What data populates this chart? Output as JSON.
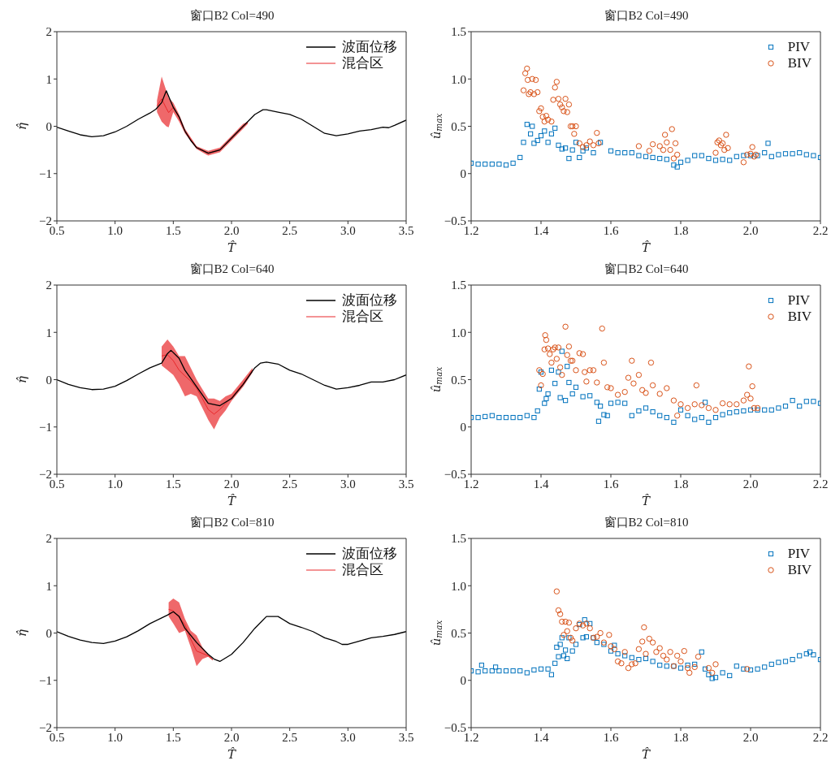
{
  "chart_data": [
    {
      "type": "line",
      "title": "窗口B2 Col=490",
      "xlabel": "T̂",
      "ylabel": "η̂",
      "xlim": [
        0.5,
        3.5
      ],
      "xticks": [
        0.5,
        {
          "value": 1,
          "label": "1.0"
        },
        1.5,
        {
          "value": 2,
          "label": "2.0"
        },
        2.5,
        {
          "value": 3,
          "label": "3.0"
        },
        3.5
      ],
      "ylim": [
        -2,
        2
      ],
      "yticks": [
        {
          "value": -2,
          "label": "−2"
        },
        {
          "value": -1,
          "label": "−1"
        },
        0,
        1,
        2
      ],
      "legend": "top right",
      "series": [
        {
          "name": "波面位移",
          "color": "#000000",
          "x": [
            0.5,
            0.6,
            0.7,
            0.8,
            0.9,
            1.0,
            1.1,
            1.2,
            1.3,
            1.35,
            1.4,
            1.44,
            1.5,
            1.55,
            1.6,
            1.65,
            1.7,
            1.8,
            1.9,
            2.0,
            2.1,
            2.2,
            2.27,
            2.3,
            2.4,
            2.5,
            2.6,
            2.7,
            2.8,
            2.9,
            3.0,
            3.1,
            3.2,
            3.3,
            3.35,
            3.4,
            3.5
          ],
          "values": [
            -0.02,
            -0.1,
            -0.18,
            -0.22,
            -0.2,
            -0.12,
            0.0,
            0.15,
            0.28,
            0.36,
            0.5,
            0.75,
            0.4,
            0.2,
            -0.1,
            -0.3,
            -0.45,
            -0.57,
            -0.5,
            -0.25,
            0.0,
            0.25,
            0.35,
            0.35,
            0.3,
            0.25,
            0.15,
            0.0,
            -0.15,
            -0.2,
            -0.16,
            -0.1,
            -0.07,
            -0.02,
            -0.03,
            0.02,
            0.13
          ]
        },
        {
          "name": "混合区",
          "color": "#e8282b",
          "x": [
            1.36,
            1.4,
            1.44,
            1.46,
            1.5,
            1.55,
            1.6,
            1.7,
            1.8,
            1.9,
            2.0,
            2.1,
            2.14
          ],
          "values": [
            0.43,
            0.58,
            0.38,
            0.29,
            0.4,
            0.18,
            -0.1,
            -0.45,
            -0.57,
            -0.5,
            -0.25,
            0,
            0.08
          ],
          "lower": [
            0.3,
            0.1,
            0.0,
            -0.02,
            0.3,
            0.1,
            -0.15,
            -0.48,
            -0.62,
            -0.55,
            -0.3,
            -0.05,
            0.05
          ],
          "upper": [
            0.55,
            1.05,
            0.75,
            0.6,
            0.5,
            0.25,
            -0.05,
            -0.42,
            -0.52,
            -0.45,
            -0.2,
            0.05,
            0.1
          ]
        }
      ]
    },
    {
      "type": "scatter",
      "title": "窗口B2 Col=490",
      "xlabel": "T̂",
      "ylabel": "û$_{max}$",
      "xlim": [
        1.2,
        2.2
      ],
      "xticks": [
        1.2,
        1.4,
        1.6,
        1.8,
        {
          "value": 2,
          "label": "2.0"
        },
        2.2
      ],
      "ylim": [
        -0.5,
        1.5
      ],
      "yticks": [
        {
          "value": -0.5,
          "label": "−0.5"
        },
        0,
        0.5,
        {
          "value": 1,
          "label": "1.0"
        },
        1.5
      ],
      "legend": "top right",
      "series": [
        {
          "name": "PIV",
          "color": "#0072bd",
          "marker": "square",
          "x": [
            1.2,
            1.22,
            1.24,
            1.26,
            1.28,
            1.3,
            1.32,
            1.34,
            1.35,
            1.36,
            1.37,
            1.375,
            1.38,
            1.39,
            1.4,
            1.41,
            1.42,
            1.43,
            1.44,
            1.45,
            1.46,
            1.47,
            1.48,
            1.49,
            1.5,
            1.51,
            1.52,
            1.53,
            1.55,
            1.57,
            1.6,
            1.62,
            1.64,
            1.66,
            1.68,
            1.7,
            1.72,
            1.74,
            1.76,
            1.78,
            1.79,
            1.8,
            1.82,
            1.84,
            1.86,
            1.88,
            1.9,
            1.92,
            1.94,
            1.96,
            1.98,
            2.0,
            2.02,
            2.04,
            2.05,
            2.06,
            2.08,
            2.1,
            2.12,
            2.14,
            2.16,
            2.18,
            2.2
          ],
          "values": [
            0.11,
            0.1,
            0.1,
            0.1,
            0.1,
            0.09,
            0.11,
            0.17,
            0.33,
            0.52,
            0.42,
            0.5,
            0.32,
            0.35,
            0.4,
            0.45,
            0.33,
            0.42,
            0.48,
            0.3,
            0.26,
            0.27,
            0.16,
            0.25,
            0.33,
            0.17,
            0.24,
            0.27,
            0.22,
            0.33,
            0.24,
            0.22,
            0.22,
            0.22,
            0.19,
            0.18,
            0.17,
            0.16,
            0.15,
            0.09,
            0.07,
            0.12,
            0.14,
            0.19,
            0.19,
            0.16,
            0.14,
            0.15,
            0.14,
            0.18,
            0.19,
            0.19,
            0.19,
            0.22,
            0.32,
            0.18,
            0.2,
            0.21,
            0.21,
            0.22,
            0.2,
            0.19,
            0.17
          ]
        },
        {
          "name": "BIV",
          "color": "#d95319",
          "marker": "circle",
          "x": [
            1.35,
            1.355,
            1.36,
            1.362,
            1.365,
            1.37,
            1.375,
            1.38,
            1.385,
            1.39,
            1.395,
            1.4,
            1.405,
            1.41,
            1.415,
            1.42,
            1.43,
            1.435,
            1.44,
            1.445,
            1.45,
            1.455,
            1.46,
            1.465,
            1.47,
            1.475,
            1.48,
            1.485,
            1.49,
            1.495,
            1.5,
            1.51,
            1.52,
            1.53,
            1.54,
            1.55,
            1.56,
            1.565,
            1.68,
            1.71,
            1.72,
            1.74,
            1.75,
            1.755,
            1.76,
            1.77,
            1.775,
            1.78,
            1.785,
            1.79,
            1.9,
            1.905,
            1.91,
            1.915,
            1.92,
            1.925,
            1.93,
            1.935,
            1.98,
            1.99,
            2.0,
            2.005,
            2.01,
            2.015
          ],
          "values": [
            0.88,
            1.06,
            1.11,
            0.99,
            0.84,
            0.86,
            1.0,
            0.84,
            0.99,
            0.86,
            0.66,
            0.69,
            0.6,
            0.55,
            0.61,
            0.57,
            0.55,
            0.78,
            0.91,
            0.97,
            0.79,
            0.73,
            0.7,
            0.66,
            0.79,
            0.65,
            0.73,
            0.5,
            0.5,
            0.42,
            0.5,
            0.32,
            0.28,
            0.3,
            0.34,
            0.3,
            0.43,
            0.32,
            0.29,
            0.24,
            0.31,
            0.29,
            0.25,
            0.41,
            0.33,
            0.25,
            0.47,
            0.16,
            0.32,
            0.2,
            0.22,
            0.33,
            0.35,
            0.3,
            0.32,
            0.25,
            0.41,
            0.27,
            0.12,
            0.2,
            0.21,
            0.28,
            0.18,
            0.2
          ]
        }
      ]
    },
    {
      "type": "line",
      "title": "窗口B2 Col=640",
      "xlabel": "T̂",
      "ylabel": "η̂",
      "xlim": [
        0.5,
        3.5
      ],
      "xticks": [
        0.5,
        {
          "value": 1,
          "label": "1.0"
        },
        1.5,
        {
          "value": 2,
          "label": "2.0"
        },
        2.5,
        {
          "value": 3,
          "label": "3.0"
        },
        3.5
      ],
      "ylim": [
        -2,
        2
      ],
      "yticks": [
        {
          "value": -2,
          "label": "−2"
        },
        {
          "value": -1,
          "label": "−1"
        },
        0,
        1,
        2
      ],
      "legend": "top right",
      "series": [
        {
          "name": "波面位移",
          "color": "#000000",
          "x": [
            0.5,
            0.6,
            0.7,
            0.8,
            0.9,
            1.0,
            1.1,
            1.2,
            1.3,
            1.4,
            1.45,
            1.48,
            1.55,
            1.6,
            1.7,
            1.8,
            1.9,
            2.0,
            2.1,
            2.2,
            2.25,
            2.3,
            2.4,
            2.5,
            2.6,
            2.7,
            2.8,
            2.9,
            3.0,
            3.1,
            3.2,
            3.3,
            3.4,
            3.5
          ],
          "values": [
            0.0,
            -0.1,
            -0.17,
            -0.21,
            -0.2,
            -0.14,
            -0.02,
            0.12,
            0.25,
            0.35,
            0.55,
            0.62,
            0.45,
            0.2,
            -0.15,
            -0.5,
            -0.55,
            -0.4,
            -0.1,
            0.25,
            0.35,
            0.37,
            0.33,
            0.2,
            0.12,
            0.0,
            -0.12,
            -0.2,
            -0.17,
            -0.12,
            -0.05,
            -0.05,
            0.0,
            0.1
          ]
        },
        {
          "name": "混合区",
          "color": "#e8282b",
          "x": [
            1.4,
            1.45,
            1.5,
            1.55,
            1.6,
            1.65,
            1.7,
            1.75,
            1.8,
            1.85,
            1.9,
            1.95,
            2.0,
            2.1,
            2.18
          ],
          "values": [
            0.5,
            0.53,
            0.4,
            0.2,
            0.08,
            -0.03,
            -0.18,
            -0.4,
            -0.63,
            -0.73,
            -0.63,
            -0.5,
            -0.38,
            -0.08,
            0.2
          ],
          "lower": [
            0.3,
            0.2,
            0.1,
            -0.1,
            -0.35,
            -0.3,
            -0.35,
            -0.6,
            -0.85,
            -1.05,
            -0.8,
            -0.65,
            -0.45,
            -0.15,
            0.15
          ],
          "upper": [
            0.7,
            0.85,
            0.7,
            0.5,
            0.5,
            0.25,
            0.0,
            -0.2,
            -0.4,
            -0.4,
            -0.45,
            -0.35,
            -0.3,
            0.0,
            0.25
          ]
        }
      ]
    },
    {
      "type": "scatter",
      "title": "窗口B2 Col=640",
      "xlabel": "T̂",
      "ylabel": "û$_{max}$",
      "xlim": [
        1.2,
        2.2
      ],
      "xticks": [
        1.2,
        1.4,
        1.6,
        1.8,
        {
          "value": 2,
          "label": "2.0"
        },
        2.2
      ],
      "ylim": [
        -0.5,
        1.5
      ],
      "yticks": [
        {
          "value": -0.5,
          "label": "−0.5"
        },
        0,
        0.5,
        {
          "value": 1,
          "label": "1.0"
        },
        1.5
      ],
      "legend": "top right",
      "series": [
        {
          "name": "PIV",
          "color": "#0072bd",
          "marker": "square",
          "x": [
            1.2,
            1.22,
            1.24,
            1.26,
            1.28,
            1.3,
            1.32,
            1.34,
            1.36,
            1.38,
            1.39,
            1.395,
            1.4,
            1.41,
            1.415,
            1.42,
            1.43,
            1.44,
            1.45,
            1.455,
            1.46,
            1.47,
            1.475,
            1.48,
            1.49,
            1.5,
            1.52,
            1.54,
            1.56,
            1.565,
            1.57,
            1.58,
            1.59,
            1.6,
            1.62,
            1.64,
            1.66,
            1.68,
            1.7,
            1.72,
            1.74,
            1.76,
            1.78,
            1.8,
            1.82,
            1.84,
            1.86,
            1.87,
            1.88,
            1.9,
            1.92,
            1.94,
            1.96,
            1.98,
            2.0,
            2.02,
            2.04,
            2.06,
            2.08,
            2.1,
            2.12,
            2.14,
            2.16,
            2.18,
            2.2
          ],
          "values": [
            0.1,
            0.1,
            0.11,
            0.12,
            0.1,
            0.1,
            0.1,
            0.1,
            0.12,
            0.1,
            0.17,
            0.4,
            0.58,
            0.25,
            0.3,
            0.35,
            0.6,
            0.46,
            0.58,
            0.31,
            0.8,
            0.28,
            0.64,
            0.47,
            0.35,
            0.42,
            0.32,
            0.33,
            0.26,
            0.06,
            0.22,
            0.13,
            0.12,
            0.25,
            0.26,
            0.25,
            0.12,
            0.17,
            0.2,
            0.16,
            0.12,
            0.1,
            0.05,
            0.18,
            0.12,
            0.08,
            0.1,
            0.26,
            0.05,
            0.1,
            0.13,
            0.15,
            0.16,
            0.17,
            0.18,
            0.18,
            0.18,
            0.18,
            0.2,
            0.22,
            0.28,
            0.22,
            0.27,
            0.27,
            0.25
          ]
        },
        {
          "name": "BIV",
          "color": "#d95319",
          "marker": "circle",
          "x": [
            1.395,
            1.4,
            1.405,
            1.41,
            1.412,
            1.415,
            1.42,
            1.425,
            1.43,
            1.435,
            1.44,
            1.445,
            1.45,
            1.455,
            1.46,
            1.47,
            1.475,
            1.48,
            1.485,
            1.49,
            1.5,
            1.51,
            1.52,
            1.525,
            1.53,
            1.54,
            1.55,
            1.56,
            1.575,
            1.58,
            1.59,
            1.6,
            1.62,
            1.64,
            1.65,
            1.66,
            1.665,
            1.68,
            1.69,
            1.7,
            1.715,
            1.72,
            1.74,
            1.76,
            1.78,
            1.79,
            1.8,
            1.82,
            1.84,
            1.845,
            1.86,
            1.88,
            1.9,
            1.92,
            1.94,
            1.96,
            1.98,
            1.99,
            1.995,
            2.0,
            2.005,
            2.01,
            2.02
          ],
          "values": [
            0.6,
            0.44,
            0.56,
            0.82,
            0.97,
            0.92,
            0.83,
            0.77,
            0.68,
            0.82,
            0.84,
            0.72,
            0.84,
            0.63,
            0.55,
            1.06,
            0.76,
            0.85,
            0.7,
            0.7,
            0.6,
            0.78,
            0.77,
            0.58,
            0.48,
            0.6,
            0.6,
            0.47,
            1.04,
            0.68,
            0.42,
            0.41,
            0.34,
            0.37,
            0.52,
            0.7,
            0.46,
            0.55,
            0.39,
            0.36,
            0.68,
            0.44,
            0.35,
            0.41,
            0.28,
            0.12,
            0.24,
            0.2,
            0.24,
            0.44,
            0.23,
            0.2,
            0.18,
            0.25,
            0.24,
            0.24,
            0.28,
            0.34,
            0.64,
            0.3,
            0.43,
            0.2,
            0.2
          ]
        }
      ]
    },
    {
      "type": "line",
      "title": "窗口B2 Col=810",
      "xlabel": "T̂",
      "ylabel": "η̂",
      "xlim": [
        0.5,
        3.5
      ],
      "xticks": [
        0.5,
        {
          "value": 1,
          "label": "1.0"
        },
        1.5,
        {
          "value": 2,
          "label": "2.0"
        },
        2.5,
        {
          "value": 3,
          "label": "3.0"
        },
        3.5
      ],
      "ylim": [
        -2,
        2
      ],
      "yticks": [
        {
          "value": -2,
          "label": "−2"
        },
        {
          "value": -1,
          "label": "−1"
        },
        0,
        1,
        2
      ],
      "legend": "top right",
      "series": [
        {
          "name": "波面位移",
          "color": "#000000",
          "x": [
            0.5,
            0.6,
            0.7,
            0.8,
            0.9,
            1.0,
            1.1,
            1.2,
            1.3,
            1.4,
            1.45,
            1.5,
            1.55,
            1.6,
            1.7,
            1.8,
            1.85,
            1.9,
            2.0,
            2.1,
            2.2,
            2.3,
            2.4,
            2.5,
            2.6,
            2.7,
            2.8,
            2.9,
            2.95,
            3.0,
            3.1,
            3.2,
            3.3,
            3.4,
            3.5
          ],
          "values": [
            0.03,
            -0.07,
            -0.15,
            -0.2,
            -0.22,
            -0.17,
            -0.08,
            0.05,
            0.2,
            0.32,
            0.38,
            0.45,
            0.35,
            0.1,
            -0.2,
            -0.45,
            -0.55,
            -0.6,
            -0.45,
            -0.2,
            0.1,
            0.35,
            0.35,
            0.2,
            0.12,
            0.03,
            -0.1,
            -0.18,
            -0.24,
            -0.24,
            -0.17,
            -0.1,
            -0.07,
            -0.03,
            0.03
          ]
        },
        {
          "name": "混合区",
          "color": "#e8282b",
          "x": [
            1.46,
            1.5,
            1.55,
            1.6,
            1.65,
            1.7,
            1.75,
            1.8,
            1.84
          ],
          "values": [
            0.5,
            0.47,
            0.33,
            0.18,
            -0.13,
            -0.38,
            -0.43,
            -0.48,
            -0.57
          ],
          "lower": [
            0.35,
            0.2,
            0.0,
            0.05,
            -0.3,
            -0.7,
            -0.55,
            -0.5,
            -0.58
          ],
          "upper": [
            0.65,
            0.73,
            0.65,
            0.3,
            0.05,
            -0.05,
            -0.3,
            -0.45,
            -0.55
          ]
        }
      ]
    },
    {
      "type": "scatter",
      "title": "窗口B2 Col=810",
      "xlabel": "T̂",
      "ylabel": "û$_{max}$",
      "xlim": [
        1.2,
        2.2
      ],
      "xticks": [
        1.2,
        1.4,
        1.6,
        1.8,
        {
          "value": 2,
          "label": "2.0"
        },
        2.2
      ],
      "ylim": [
        -0.5,
        1.5
      ],
      "yticks": [
        {
          "value": -0.5,
          "label": "−0.5"
        },
        0,
        0.5,
        {
          "value": 1,
          "label": "1.0"
        },
        1.5
      ],
      "legend": "top right",
      "series": [
        {
          "name": "PIV",
          "color": "#0072bd",
          "marker": "square",
          "x": [
            1.2,
            1.22,
            1.23,
            1.24,
            1.26,
            1.27,
            1.28,
            1.3,
            1.32,
            1.34,
            1.36,
            1.38,
            1.4,
            1.42,
            1.43,
            1.44,
            1.445,
            1.45,
            1.455,
            1.46,
            1.465,
            1.47,
            1.475,
            1.48,
            1.49,
            1.5,
            1.51,
            1.52,
            1.525,
            1.53,
            1.54,
            1.55,
            1.56,
            1.58,
            1.6,
            1.61,
            1.62,
            1.64,
            1.66,
            1.68,
            1.7,
            1.72,
            1.74,
            1.76,
            1.78,
            1.8,
            1.82,
            1.84,
            1.86,
            1.87,
            1.88,
            1.89,
            1.9,
            1.92,
            1.94,
            1.96,
            1.98,
            2.0,
            2.02,
            2.04,
            2.06,
            2.08,
            2.1,
            2.12,
            2.14,
            2.16,
            2.17,
            2.18,
            2.2
          ],
          "values": [
            0.1,
            0.09,
            0.16,
            0.1,
            0.1,
            0.14,
            0.1,
            0.1,
            0.1,
            0.1,
            0.08,
            0.11,
            0.12,
            0.12,
            0.06,
            0.18,
            0.35,
            0.25,
            0.38,
            0.45,
            0.26,
            0.32,
            0.23,
            0.45,
            0.31,
            0.38,
            0.59,
            0.45,
            0.64,
            0.46,
            0.6,
            0.45,
            0.4,
            0.38,
            0.31,
            0.37,
            0.28,
            0.26,
            0.24,
            0.22,
            0.23,
            0.2,
            0.16,
            0.15,
            0.15,
            0.13,
            0.16,
            0.17,
            0.3,
            0.12,
            0.06,
            0.02,
            0.03,
            0.08,
            0.05,
            0.15,
            0.12,
            0.11,
            0.12,
            0.14,
            0.17,
            0.19,
            0.2,
            0.22,
            0.26,
            0.28,
            0.3,
            0.27,
            0.22
          ]
        },
        {
          "name": "BIV",
          "color": "#d95319",
          "marker": "circle",
          "x": [
            1.445,
            1.45,
            1.455,
            1.46,
            1.465,
            1.47,
            1.475,
            1.48,
            1.485,
            1.49,
            1.5,
            1.51,
            1.52,
            1.53,
            1.54,
            1.55,
            1.56,
            1.57,
            1.58,
            1.595,
            1.6,
            1.61,
            1.62,
            1.63,
            1.64,
            1.65,
            1.66,
            1.67,
            1.68,
            1.69,
            1.695,
            1.7,
            1.71,
            1.72,
            1.73,
            1.74,
            1.75,
            1.76,
            1.77,
            1.78,
            1.79,
            1.8,
            1.81,
            1.82,
            1.825,
            1.84,
            1.85,
            1.88,
            1.89,
            1.9,
            1.99
          ],
          "values": [
            0.94,
            0.74,
            0.7,
            0.62,
            0.48,
            0.62,
            0.52,
            0.61,
            0.45,
            0.42,
            0.55,
            0.6,
            0.58,
            0.6,
            0.55,
            0.45,
            0.46,
            0.5,
            0.4,
            0.48,
            0.36,
            0.33,
            0.2,
            0.18,
            0.3,
            0.13,
            0.17,
            0.18,
            0.33,
            0.41,
            0.56,
            0.28,
            0.44,
            0.4,
            0.3,
            0.34,
            0.26,
            0.22,
            0.3,
            0.15,
            0.26,
            0.2,
            0.31,
            0.13,
            0.08,
            0.14,
            0.25,
            0.13,
            0.08,
            0.17,
            0.12
          ]
        }
      ]
    }
  ]
}
